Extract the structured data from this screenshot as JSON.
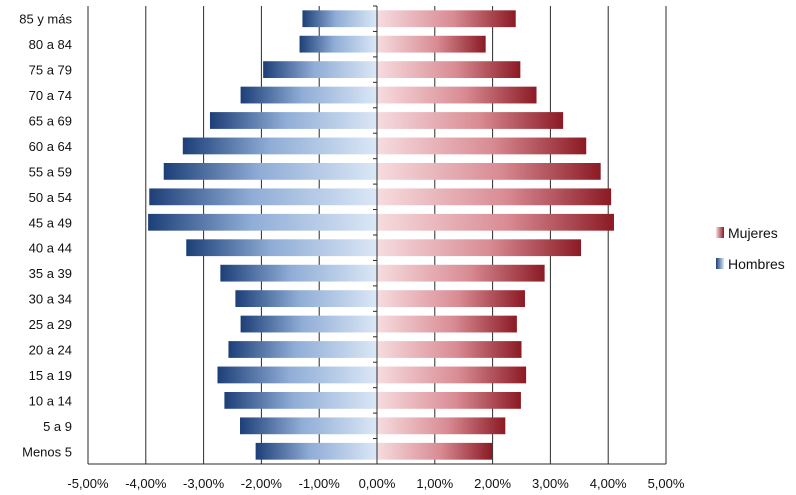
{
  "chart_data": {
    "type": "bar",
    "orientation": "horizontal",
    "stacked": "diverging",
    "categories": [
      "85 y más",
      "80 a 84",
      "75 a 79",
      "70 a 74",
      "65 a 69",
      "60 a 64",
      "55 a 59",
      "50 a 54",
      "45 a 49",
      "40 a 44",
      "35 a 39",
      "30 a 34",
      "25 a 29",
      "20 a 24",
      "15 a 19",
      "10 a 14",
      "5 a 9",
      "Menos 5"
    ],
    "series": [
      {
        "name": "Mujeres",
        "values": [
          2.4,
          1.88,
          2.48,
          2.76,
          3.22,
          3.62,
          3.87,
          4.05,
          4.1,
          3.53,
          2.9,
          2.56,
          2.42,
          2.5,
          2.58,
          2.49,
          2.22,
          1.99
        ],
        "color": "#8b1a24"
      },
      {
        "name": "Hombres",
        "values": [
          -1.29,
          -1.34,
          -1.97,
          -2.36,
          -2.89,
          -3.36,
          -3.69,
          -3.94,
          -3.96,
          -3.3,
          -2.71,
          -2.45,
          -2.36,
          -2.57,
          -2.76,
          -2.64,
          -2.37,
          -2.1
        ],
        "color": "#1d3f78"
      }
    ],
    "xlim": [
      -5,
      5
    ],
    "x_ticks": [
      "-5,00%",
      "-4,00%",
      "-3,00%",
      "-2,00%",
      "-1,00%",
      "0,00%",
      "1,00%",
      "2,00%",
      "3,00%",
      "4,00%",
      "5,00%"
    ],
    "grid": true,
    "legend_position": "right"
  },
  "legend": [
    "Mujeres",
    "Hombres"
  ]
}
